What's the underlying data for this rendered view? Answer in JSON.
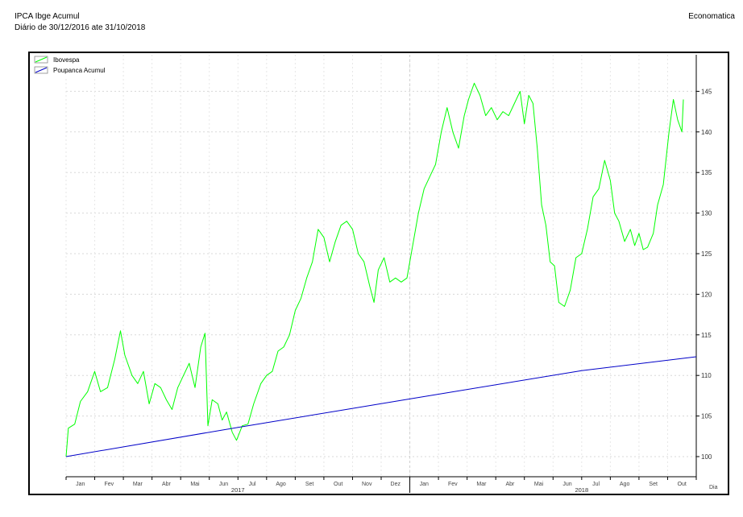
{
  "header": {
    "title": "IPCA Ibge Acumul",
    "subtitle": "Diário de 30/12/2016 ate 31/10/2018",
    "brand": "Economatica"
  },
  "chart_data": {
    "type": "line",
    "xlabel": "Dia",
    "ylim": [
      98,
      149
    ],
    "yticks": [
      100,
      105,
      110,
      115,
      120,
      125,
      130,
      135,
      140,
      145
    ],
    "xlim": [
      0,
      22
    ],
    "x_tick_labels": [
      "Jan",
      "Fev",
      "Mar",
      "Abr",
      "Mai",
      "Jun",
      "Jul",
      "Ago",
      "Set",
      "Out",
      "Nov",
      "Dez",
      "Jan",
      "Fev",
      "Mar",
      "Abr",
      "Mai",
      "Jun",
      "Jul",
      "Ago",
      "Set",
      "Out"
    ],
    "year_labels": [
      {
        "label": "2017",
        "x": 6
      },
      {
        "label": "2018",
        "x": 18
      }
    ],
    "grid": true,
    "legend_position": "top-left",
    "series": [
      {
        "name": "Ibovespa",
        "color": "#00ff00",
        "points": [
          [
            0.0,
            100.0
          ],
          [
            0.08,
            103.5
          ],
          [
            0.3,
            104.0
          ],
          [
            0.5,
            106.8
          ],
          [
            0.75,
            108.0
          ],
          [
            1.0,
            110.5
          ],
          [
            1.2,
            108.0
          ],
          [
            1.45,
            108.5
          ],
          [
            1.7,
            112.0
          ],
          [
            1.9,
            115.5
          ],
          [
            2.05,
            112.5
          ],
          [
            2.3,
            110.0
          ],
          [
            2.5,
            109.0
          ],
          [
            2.7,
            110.5
          ],
          [
            2.9,
            106.5
          ],
          [
            3.1,
            109.0
          ],
          [
            3.3,
            108.5
          ],
          [
            3.5,
            107.0
          ],
          [
            3.7,
            105.8
          ],
          [
            3.9,
            108.5
          ],
          [
            4.1,
            110.0
          ],
          [
            4.3,
            111.5
          ],
          [
            4.5,
            108.5
          ],
          [
            4.7,
            113.5
          ],
          [
            4.85,
            115.2
          ],
          [
            4.95,
            103.8
          ],
          [
            5.1,
            107.0
          ],
          [
            5.3,
            106.5
          ],
          [
            5.45,
            104.5
          ],
          [
            5.6,
            105.5
          ],
          [
            5.8,
            103.0
          ],
          [
            5.95,
            102.0
          ],
          [
            6.15,
            103.8
          ],
          [
            6.35,
            104.0
          ],
          [
            6.55,
            106.5
          ],
          [
            6.8,
            109.0
          ],
          [
            7.0,
            110.0
          ],
          [
            7.2,
            110.5
          ],
          [
            7.4,
            113.0
          ],
          [
            7.6,
            113.5
          ],
          [
            7.8,
            115.0
          ],
          [
            8.0,
            118.0
          ],
          [
            8.2,
            119.5
          ],
          [
            8.4,
            122.0
          ],
          [
            8.6,
            124.0
          ],
          [
            8.8,
            128.0
          ],
          [
            9.0,
            127.0
          ],
          [
            9.2,
            124.0
          ],
          [
            9.4,
            126.5
          ],
          [
            9.6,
            128.5
          ],
          [
            9.8,
            129.0
          ],
          [
            10.0,
            128.0
          ],
          [
            10.2,
            125.0
          ],
          [
            10.4,
            124.0
          ],
          [
            10.6,
            121.0
          ],
          [
            10.75,
            119.0
          ],
          [
            10.9,
            123.0
          ],
          [
            11.1,
            124.5
          ],
          [
            11.3,
            121.5
          ],
          [
            11.5,
            122.0
          ],
          [
            11.7,
            121.5
          ],
          [
            11.9,
            122.0
          ],
          [
            12.1,
            126.0
          ],
          [
            12.3,
            130.0
          ],
          [
            12.5,
            133.0
          ],
          [
            12.7,
            134.5
          ],
          [
            12.9,
            136.0
          ],
          [
            13.1,
            140.0
          ],
          [
            13.3,
            143.0
          ],
          [
            13.5,
            140.0
          ],
          [
            13.7,
            138.0
          ],
          [
            13.9,
            142.0
          ],
          [
            14.05,
            144.0
          ],
          [
            14.25,
            146.0
          ],
          [
            14.45,
            144.5
          ],
          [
            14.65,
            142.0
          ],
          [
            14.85,
            143.0
          ],
          [
            15.05,
            141.5
          ],
          [
            15.25,
            142.5
          ],
          [
            15.45,
            142.0
          ],
          [
            15.65,
            143.5
          ],
          [
            15.85,
            145.0
          ],
          [
            16.0,
            141.0
          ],
          [
            16.15,
            144.5
          ],
          [
            16.3,
            143.5
          ],
          [
            16.45,
            138.0
          ],
          [
            16.6,
            131.0
          ],
          [
            16.75,
            128.5
          ],
          [
            16.9,
            124.0
          ],
          [
            17.05,
            123.5
          ],
          [
            17.2,
            119.0
          ],
          [
            17.4,
            118.5
          ],
          [
            17.6,
            120.5
          ],
          [
            17.8,
            124.5
          ],
          [
            18.0,
            125.0
          ],
          [
            18.2,
            128.0
          ],
          [
            18.4,
            132.0
          ],
          [
            18.6,
            133.0
          ],
          [
            18.8,
            136.5
          ],
          [
            19.0,
            134.0
          ],
          [
            19.15,
            130.0
          ],
          [
            19.3,
            129.0
          ],
          [
            19.5,
            126.5
          ],
          [
            19.7,
            128.0
          ],
          [
            19.85,
            126.0
          ],
          [
            20.0,
            127.5
          ],
          [
            20.15,
            125.5
          ],
          [
            20.3,
            125.8
          ],
          [
            20.5,
            127.5
          ],
          [
            20.65,
            131.0
          ],
          [
            20.85,
            133.5
          ],
          [
            21.05,
            140.0
          ],
          [
            21.2,
            144.0
          ],
          [
            21.35,
            141.5
          ],
          [
            21.5,
            140.0
          ],
          [
            21.55,
            144.0
          ]
        ]
      },
      {
        "name": "Poupanca Acumul",
        "color": "#0000c8",
        "points": [
          [
            0.0,
            100.0
          ],
          [
            6.0,
            103.6
          ],
          [
            12.0,
            107.1
          ],
          [
            18.0,
            110.6
          ],
          [
            22.0,
            112.3
          ]
        ]
      }
    ]
  }
}
